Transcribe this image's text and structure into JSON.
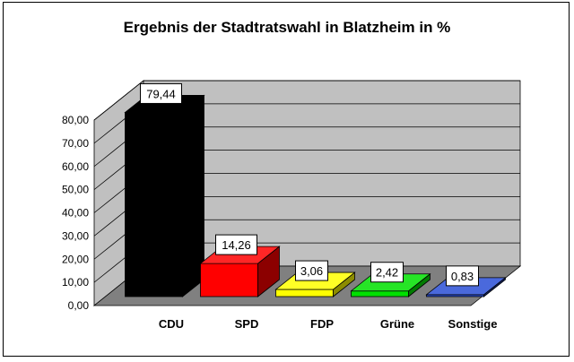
{
  "chart_data": {
    "type": "bar",
    "title": "Ergebnis der Stadtratswahl in Blatzheim in %",
    "categories": [
      "CDU",
      "SPD",
      "FDP",
      "Grüne",
      "Sonstige"
    ],
    "values": [
      79.44,
      14.26,
      3.06,
      2.42,
      0.83
    ],
    "data_labels": [
      "79,44",
      "14,26",
      "3,06",
      "2,42",
      "0,83"
    ],
    "colors": [
      "#000000",
      "#ff0000",
      "#ffff00",
      "#00e000",
      "#2a4fd6"
    ],
    "yticks": [
      "0,00",
      "10,00",
      "20,00",
      "30,00",
      "40,00",
      "50,00",
      "60,00",
      "70,00",
      "80,00"
    ],
    "ylim": [
      0,
      80
    ],
    "grid": true,
    "xlabel": "",
    "ylabel": "",
    "legend": "none"
  }
}
